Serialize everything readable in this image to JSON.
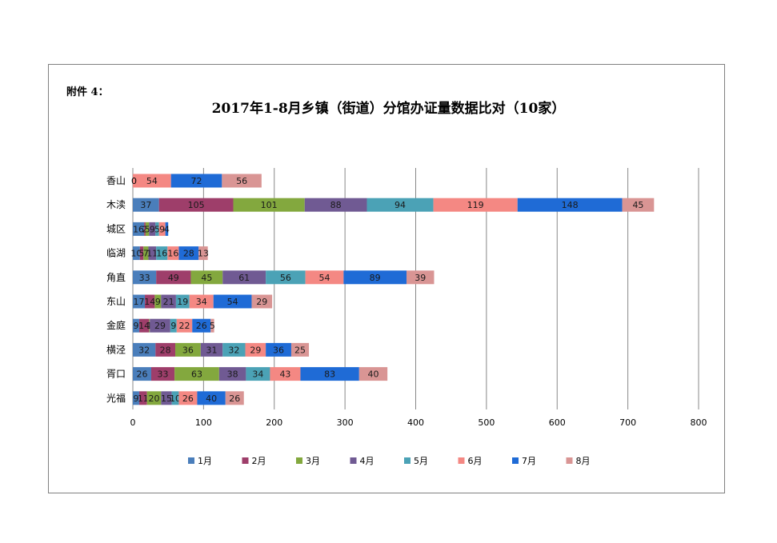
{
  "header": {
    "attachment": "附件 4："
  },
  "chart_data": {
    "type": "bar",
    "orientation": "horizontal",
    "stacked": true,
    "title": "2017年1-8月乡镇（街道）分馆办证量数据比对（10家）",
    "xlim": [
      0,
      800
    ],
    "xticks": [
      "0",
      "100",
      "200",
      "300",
      "400",
      "500",
      "600",
      "700",
      "800"
    ],
    "grid": "vertical",
    "legend_position": "bottom",
    "categories": [
      "香山",
      "木渎",
      "城区",
      "临湖",
      "角直",
      "东山",
      "金庭",
      "横泾",
      "胥口",
      "光福"
    ],
    "series": [
      {
        "name": "1月",
        "color": "#4A7EBB",
        "values": [
          0,
          37,
          16,
          10,
          33,
          17,
          9,
          32,
          26,
          9
        ]
      },
      {
        "name": "2月",
        "color": "#9E3E6A",
        "values": [
          0,
          105,
          2,
          5,
          49,
          14,
          14,
          28,
          33,
          11
        ]
      },
      {
        "name": "3月",
        "color": "#83A83E",
        "values": [
          0,
          101,
          5,
          7,
          45,
          9,
          1,
          36,
          63,
          20
        ]
      },
      {
        "name": "4月",
        "color": "#705A93",
        "values": [
          0,
          88,
          9,
          11,
          61,
          21,
          29,
          31,
          38,
          15
        ]
      },
      {
        "name": "5月",
        "color": "#4BA2B6",
        "values": [
          0,
          94,
          5,
          16,
          56,
          19,
          9,
          32,
          34,
          10
        ]
      },
      {
        "name": "6月",
        "color": "#F48883",
        "values": [
          54,
          119,
          9,
          16,
          54,
          34,
          22,
          29,
          43,
          26
        ]
      },
      {
        "name": "7月",
        "color": "#1F6BD6",
        "values": [
          72,
          148,
          4,
          28,
          89,
          54,
          26,
          36,
          83,
          40
        ]
      },
      {
        "name": "8月",
        "color": "#D99594",
        "values": [
          56,
          45,
          0,
          13,
          39,
          29,
          5,
          25,
          40,
          26
        ]
      }
    ],
    "label_overrides": [
      {
        "category": "香山",
        "text": "0"
      }
    ]
  }
}
